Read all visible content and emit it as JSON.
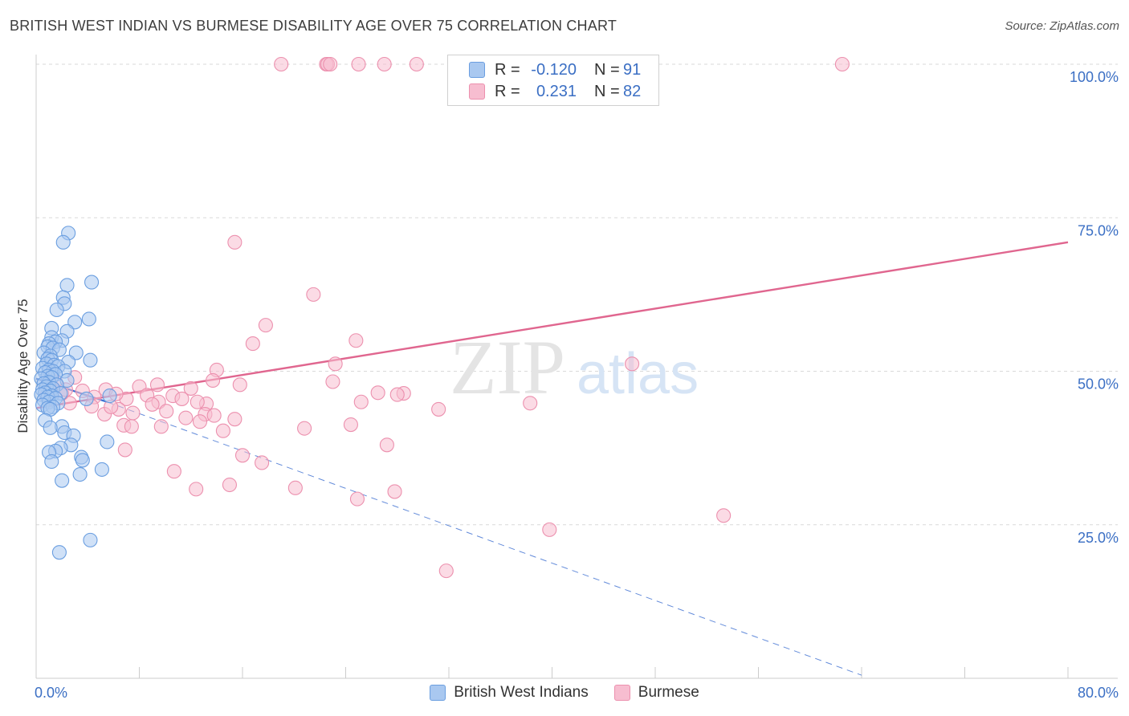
{
  "title": "BRITISH WEST INDIAN VS BURMESE DISABILITY AGE OVER 75 CORRELATION CHART",
  "source": "Source: ZipAtlas.com",
  "watermark": {
    "zip": "ZIP",
    "atlas": "atlas"
  },
  "legend": {
    "series1": {
      "r_label": "R =",
      "r_value": "-0.120",
      "n_label": "N =",
      "n_value": "91",
      "name": "British West Indians"
    },
    "series2": {
      "r_label": "R =",
      "r_value": "0.231",
      "n_label": "N =",
      "n_value": "82",
      "name": "Burmese"
    }
  },
  "colors": {
    "blue_fill": "#a9c8f0",
    "blue_stroke": "#6a9ee0",
    "blue_line": "#3d6fd1",
    "pink_fill": "#f7bdd0",
    "pink_stroke": "#ec90ae",
    "pink_line": "#e0668f",
    "grid": "#d9d9d9",
    "tick_label": "#3b6fc4"
  },
  "chart_data": {
    "type": "scatter",
    "title": "BRITISH WEST INDIAN VS BURMESE DISABILITY AGE OVER 75 CORRELATION CHART",
    "xlabel": "",
    "ylabel": "Disability Age Over 75",
    "xlim": [
      0,
      80
    ],
    "ylim": [
      0,
      100
    ],
    "x_tick_labels": [
      {
        "value": 0,
        "label": "0.0%"
      },
      {
        "value": 80,
        "label": "80.0%"
      }
    ],
    "y_tick_labels": [
      {
        "value": 25,
        "label": "25.0%"
      },
      {
        "value": 50,
        "label": "50.0%"
      },
      {
        "value": 75,
        "label": "75.0%"
      },
      {
        "value": 100,
        "label": "100.0%"
      }
    ],
    "series": [
      {
        "name": "British West Indians",
        "r": -0.12,
        "n": 91,
        "trend": {
          "x0": 0,
          "y0": 48.8,
          "x1": 5.5,
          "y1": 45.0,
          "dash_x1": 64,
          "dash_y1": 0.5
        },
        "points": [
          [
            2.5,
            72.5
          ],
          [
            2.1,
            71.0
          ],
          [
            4.3,
            64.5
          ],
          [
            2.4,
            64.0
          ],
          [
            2.1,
            62.0
          ],
          [
            2.2,
            61.0
          ],
          [
            1.6,
            60.0
          ],
          [
            4.1,
            58.5
          ],
          [
            3.0,
            58.0
          ],
          [
            1.2,
            57.0
          ],
          [
            2.4,
            56.5
          ],
          [
            1.2,
            55.5
          ],
          [
            2.0,
            55.0
          ],
          [
            1.5,
            54.8
          ],
          [
            1.0,
            54.5
          ],
          [
            0.9,
            54.0
          ],
          [
            1.3,
            53.8
          ],
          [
            1.8,
            53.5
          ],
          [
            0.6,
            53.0
          ],
          [
            3.1,
            53.0
          ],
          [
            1.1,
            52.5
          ],
          [
            0.9,
            52.0
          ],
          [
            1.2,
            51.8
          ],
          [
            4.2,
            51.8
          ],
          [
            2.5,
            51.5
          ],
          [
            0.8,
            51.2
          ],
          [
            1.4,
            51.0
          ],
          [
            1.7,
            50.8
          ],
          [
            0.5,
            50.5
          ],
          [
            1.0,
            50.2
          ],
          [
            1.3,
            50.0
          ],
          [
            2.2,
            50.0
          ],
          [
            0.7,
            49.8
          ],
          [
            1.5,
            49.5
          ],
          [
            0.9,
            49.2
          ],
          [
            1.2,
            49.0
          ],
          [
            0.4,
            48.8
          ],
          [
            2.4,
            48.5
          ],
          [
            1.0,
            48.2
          ],
          [
            0.6,
            48.0
          ],
          [
            1.6,
            47.8
          ],
          [
            0.8,
            47.5
          ],
          [
            1.3,
            47.2
          ],
          [
            0.5,
            47.0
          ],
          [
            1.1,
            46.8
          ],
          [
            0.7,
            46.5
          ],
          [
            1.9,
            46.4
          ],
          [
            0.4,
            46.2
          ],
          [
            1.2,
            46.0
          ],
          [
            0.9,
            45.8
          ],
          [
            1.5,
            45.6
          ],
          [
            3.9,
            45.5
          ],
          [
            0.6,
            45.3
          ],
          [
            1.0,
            45.0
          ],
          [
            1.7,
            44.8
          ],
          [
            5.7,
            46.0
          ],
          [
            0.5,
            44.5
          ],
          [
            1.3,
            44.2
          ],
          [
            0.9,
            44.0
          ],
          [
            1.1,
            43.8
          ],
          [
            0.7,
            42.0
          ],
          [
            2.0,
            41.0
          ],
          [
            1.1,
            40.8
          ],
          [
            2.2,
            40.0
          ],
          [
            2.9,
            39.5
          ],
          [
            5.5,
            38.5
          ],
          [
            2.7,
            38.0
          ],
          [
            1.9,
            37.5
          ],
          [
            1.5,
            37.0
          ],
          [
            1.0,
            36.8
          ],
          [
            3.5,
            36.0
          ],
          [
            3.6,
            35.5
          ],
          [
            1.2,
            35.3
          ],
          [
            5.1,
            34.0
          ],
          [
            3.4,
            33.2
          ],
          [
            2.0,
            32.2
          ],
          [
            4.2,
            22.5
          ],
          [
            1.8,
            20.5
          ]
        ]
      },
      {
        "name": "Burmese",
        "r": 0.231,
        "n": 82,
        "trend": {
          "x0": 0,
          "y0": 44.0,
          "x1": 80,
          "y1": 71.0
        },
        "points": [
          [
            19,
            100
          ],
          [
            22.5,
            100
          ],
          [
            22.6,
            100
          ],
          [
            22.8,
            100
          ],
          [
            25,
            100
          ],
          [
            27,
            100
          ],
          [
            29.5,
            100
          ],
          [
            62.5,
            100
          ],
          [
            15.4,
            71.0
          ],
          [
            21.5,
            62.5
          ],
          [
            17.8,
            57.5
          ],
          [
            16.8,
            54.5
          ],
          [
            24.8,
            55.0
          ],
          [
            23.2,
            51.2
          ],
          [
            46.2,
            51.2
          ],
          [
            14.0,
            50.2
          ],
          [
            23.0,
            48.3
          ],
          [
            13.7,
            48.5
          ],
          [
            15.8,
            47.8
          ],
          [
            8.0,
            47.5
          ],
          [
            5.4,
            47.0
          ],
          [
            12.0,
            47.2
          ],
          [
            9.4,
            47.8
          ],
          [
            3.0,
            49.0
          ],
          [
            26.5,
            46.5
          ],
          [
            28.5,
            46.4
          ],
          [
            10.6,
            46.0
          ],
          [
            4.5,
            45.8
          ],
          [
            7.0,
            45.5
          ],
          [
            11.3,
            45.5
          ],
          [
            9.5,
            45.0
          ],
          [
            13.2,
            44.7
          ],
          [
            25.2,
            45.0
          ],
          [
            38.3,
            44.8
          ],
          [
            2.6,
            44.8
          ],
          [
            4.3,
            44.3
          ],
          [
            6.4,
            43.8
          ],
          [
            7.5,
            43.2
          ],
          [
            5.3,
            43.0
          ],
          [
            10.1,
            43.5
          ],
          [
            13.1,
            43.0
          ],
          [
            13.8,
            42.8
          ],
          [
            11.6,
            42.4
          ],
          [
            15.4,
            42.2
          ],
          [
            12.7,
            41.8
          ],
          [
            6.8,
            41.2
          ],
          [
            7.4,
            41.0
          ],
          [
            9.7,
            41.0
          ],
          [
            24.4,
            41.3
          ],
          [
            20.8,
            40.7
          ],
          [
            14.5,
            40.3
          ],
          [
            27.2,
            38.0
          ],
          [
            6.9,
            37.2
          ],
          [
            16.0,
            36.3
          ],
          [
            17.5,
            35.1
          ],
          [
            10.7,
            33.7
          ],
          [
            15.0,
            31.5
          ],
          [
            20.1,
            31.0
          ],
          [
            12.4,
            30.8
          ],
          [
            27.8,
            30.4
          ],
          [
            24.9,
            29.2
          ],
          [
            53.3,
            26.5
          ],
          [
            39.8,
            24.2
          ],
          [
            31.8,
            17.5
          ],
          [
            28.0,
            46.2
          ],
          [
            31.2,
            43.8
          ],
          [
            1.2,
            47.5
          ],
          [
            2.0,
            46.4
          ],
          [
            3.6,
            46.8
          ],
          [
            8.6,
            46.1
          ],
          [
            6.2,
            46.3
          ],
          [
            12.5,
            45.0
          ],
          [
            1.5,
            48.3
          ],
          [
            2.3,
            47.0
          ],
          [
            0.8,
            46.0
          ],
          [
            5.8,
            44.2
          ],
          [
            9.0,
            44.6
          ]
        ]
      }
    ]
  }
}
